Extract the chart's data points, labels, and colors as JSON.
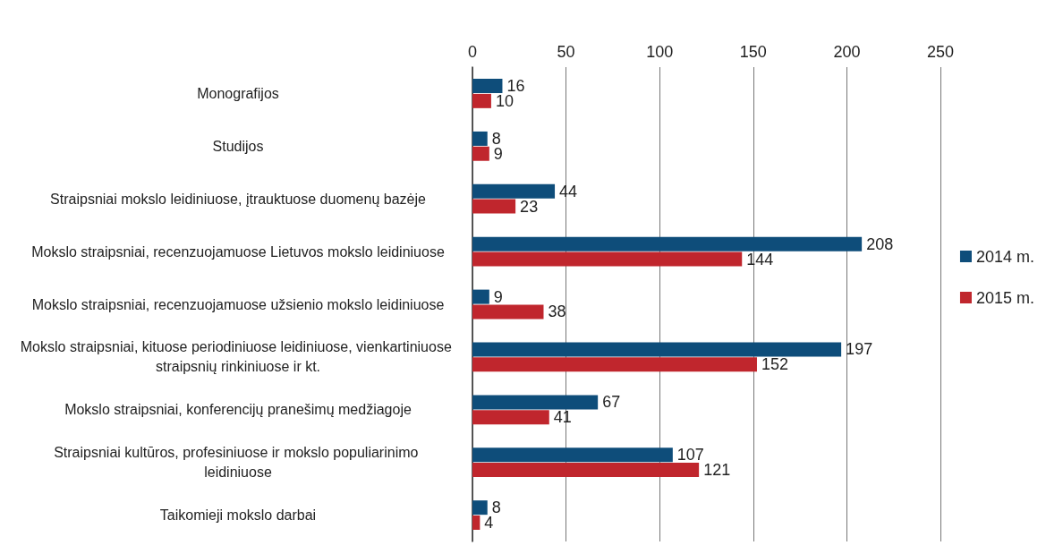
{
  "chart_data": {
    "type": "bar",
    "orientation": "horizontal",
    "categories": [
      "Monografijos",
      "Studijos",
      "Straipsniai mokslo leidiniuose, įtrauktuose duomenų bazėje",
      "Mokslo straipsniai, recenzuojamuose Lietuvos mokslo leidiniuose",
      "Mokslo straipsniai, recenzuojamuose užsienio mokslo leidiniuose",
      "Mokslo straipsniai, kituose periodiniuose leidiniuose, vienkartiniuose straipsnių rinkiniuose ir kt.",
      "Mokslo straipsniai, konferencijų pranešimų medžiagoje",
      "Straipsniai kultūros, profesiniuose ir mokslo populiarinimo leidiniuose",
      "Taikomieji mokslo darbai"
    ],
    "series": [
      {
        "name": "2014 m.",
        "color": "#0e4d7a",
        "values": [
          16,
          8,
          44,
          208,
          9,
          197,
          67,
          107,
          8
        ]
      },
      {
        "name": "2015 m.",
        "color": "#c0262d",
        "values": [
          10,
          9,
          23,
          144,
          38,
          152,
          41,
          121,
          4
        ]
      }
    ],
    "xlim": [
      0,
      250
    ],
    "xticks": [
      0,
      50,
      100,
      150,
      200,
      250
    ],
    "grid": "x",
    "legend": "right",
    "data_labels": true
  }
}
